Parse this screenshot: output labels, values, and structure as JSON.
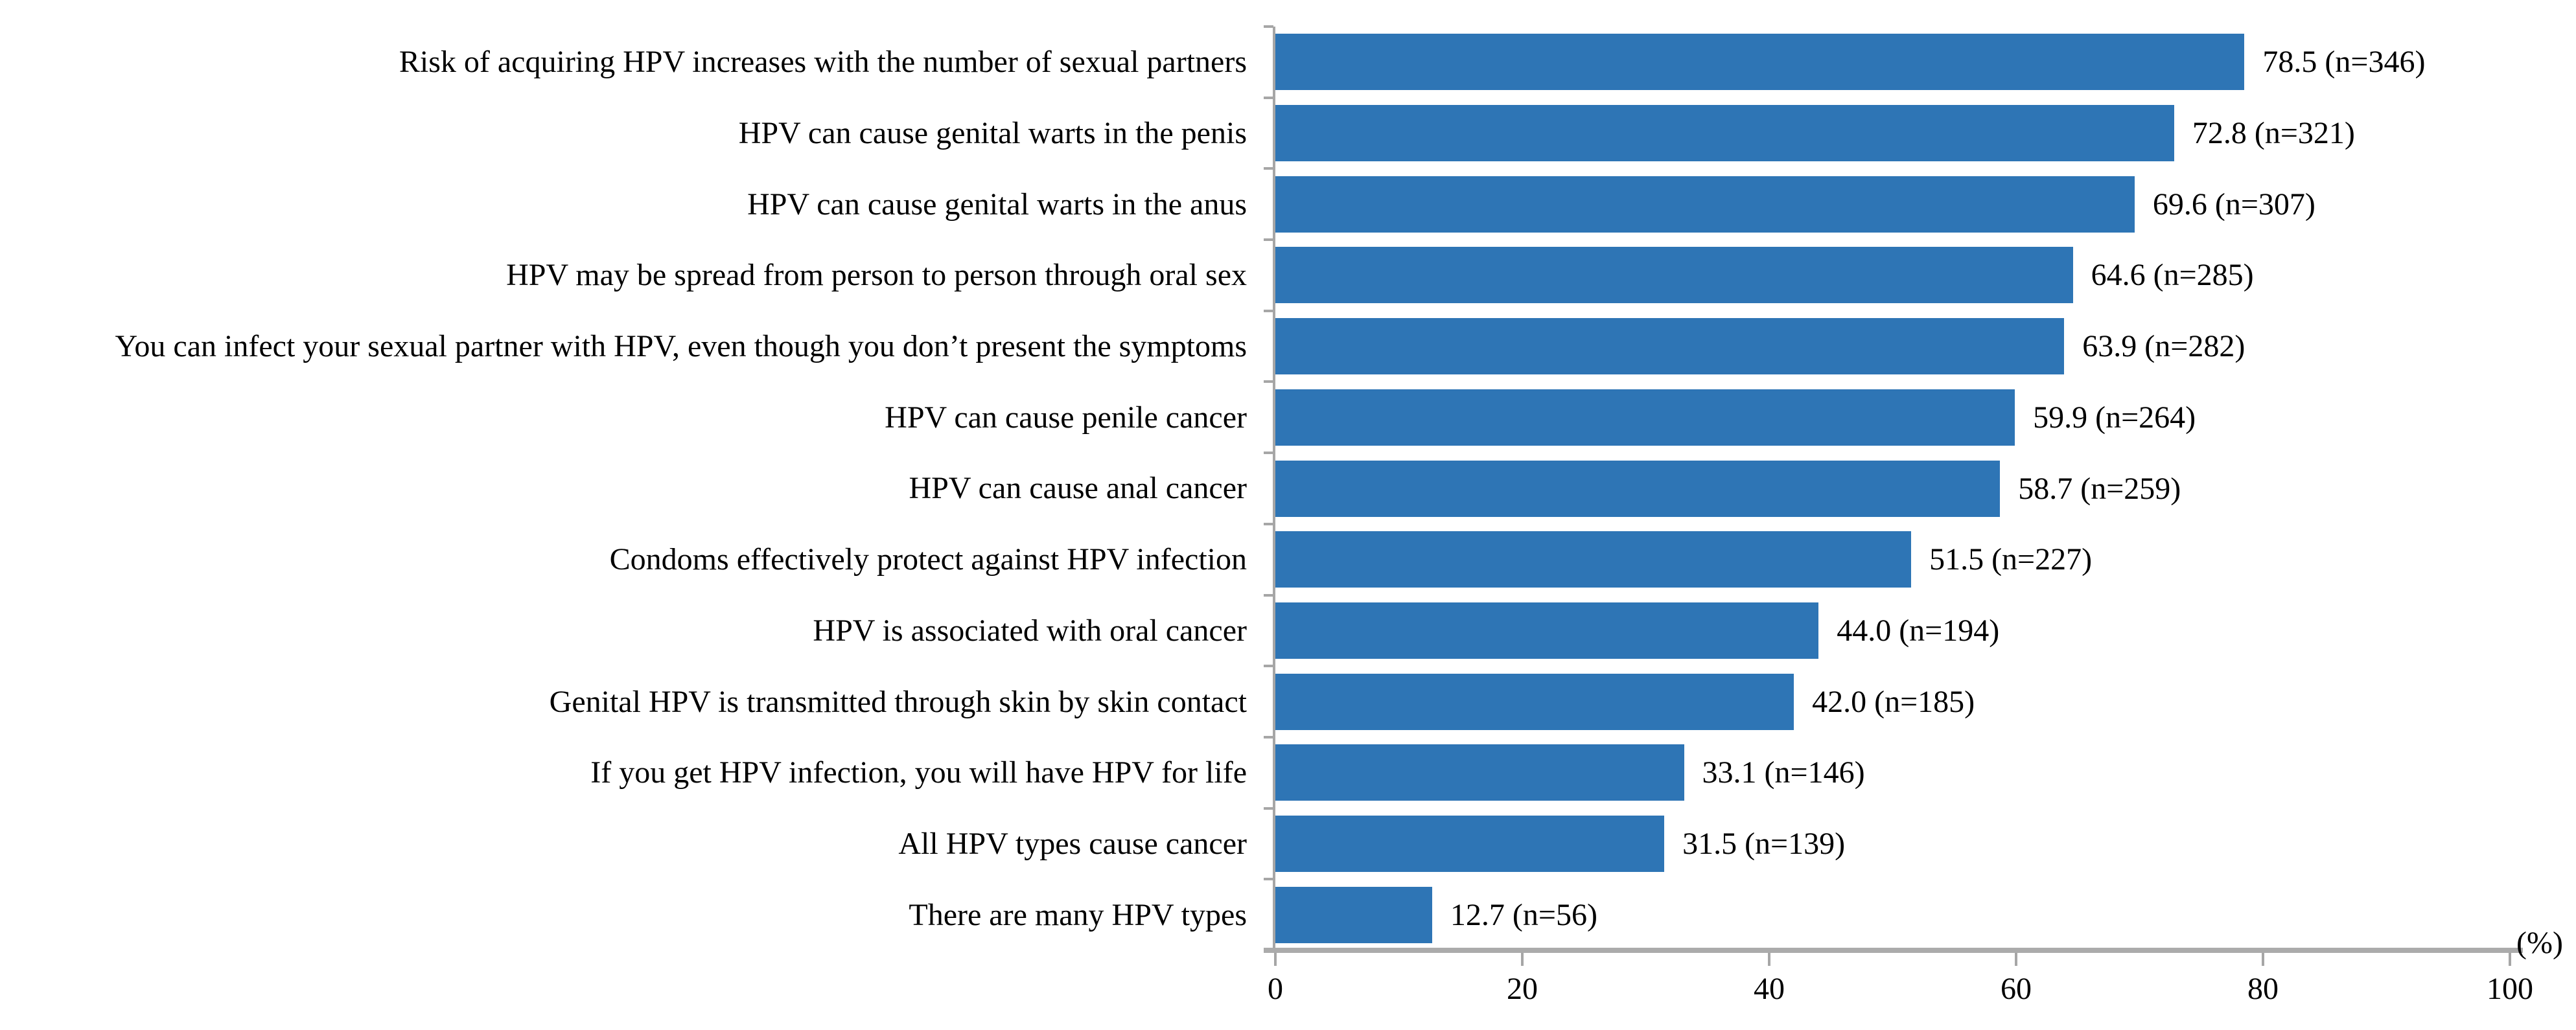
{
  "chart_data": {
    "type": "bar",
    "orientation": "horizontal",
    "title": "",
    "xlabel": "(%)",
    "ylabel": "",
    "xlim": [
      0,
      100
    ],
    "xticks": [
      0,
      20,
      40,
      60,
      80,
      100
    ],
    "grid": false,
    "legend": null,
    "bar_color": "#2E75B5",
    "axis_color": "#A6A6A6",
    "value_label_format": "{value} (n={n})",
    "categories": [
      "Risk of acquiring HPV increases with the number of sexual partners",
      "HPV can cause genital warts in the penis",
      "HPV can cause genital warts in the anus",
      "HPV may be spread from person to person through oral sex",
      "You can infect your sexual partner with HPV, even though you don’t present the symptoms",
      "HPV can cause penile cancer",
      "HPV can cause anal cancer",
      "Condoms effectively protect against HPV infection",
      "HPV is associated with oral cancer",
      "Genital HPV is transmitted through skin by skin contact",
      "If you get HPV infection, you will have HPV for life",
      "All HPV types cause cancer",
      "There are many HPV types"
    ],
    "values": [
      78.5,
      72.8,
      69.6,
      64.6,
      63.9,
      59.9,
      58.7,
      51.5,
      44.0,
      42.0,
      33.1,
      31.5,
      12.7
    ],
    "n_values": [
      346,
      321,
      307,
      285,
      282,
      264,
      259,
      227,
      194,
      185,
      146,
      139,
      56
    ],
    "value_labels": [
      "78.5 (n=346)",
      "72.8 (n=321)",
      "69.6 (n=307)",
      "64.6 (n=285)",
      "63.9 (n=282)",
      "59.9 (n=264)",
      "58.7 (n=259)",
      "51.5 (n=227)",
      "44.0 (n=194)",
      "42.0 (n=185)",
      "33.1 (n=146)",
      "31.5 (n=139)",
      "12.7 (n=56)"
    ]
  }
}
